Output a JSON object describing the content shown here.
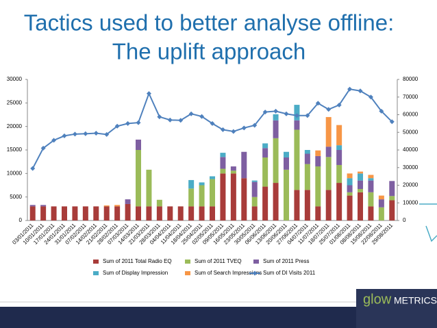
{
  "chart_data": {
    "type": "bar",
    "stacked": true,
    "title": "Tactics used to better analyse offline:",
    "subtitle": "The uplift approach",
    "categories": [
      "03/01/2011",
      "10/01/2011",
      "17/01/2011",
      "24/01/2011",
      "31/01/2011",
      "07/02/2011",
      "14/02/2011",
      "21/02/2011",
      "28/02/2011",
      "07/03/2011",
      "14/03/2011",
      "21/03/2011",
      "28/03/2011",
      "04/04/2011",
      "11/04/2011",
      "18/04/2011",
      "25/04/2011",
      "02/05/2011",
      "09/05/2011",
      "16/05/2011",
      "23/05/2011",
      "30/05/2011",
      "06/06/2011",
      "13/06/2011",
      "20/06/2011",
      "27/06/2011",
      "04/07/2011",
      "11/07/2011",
      "18/07/2011",
      "25/07/2011",
      "01/08/2011",
      "08/08/2011",
      "15/08/2011",
      "22/08/2011",
      "29/08/2011"
    ],
    "series": [
      {
        "name": "Sum of 2011 Total Radio EQ",
        "color": "#a83c3a",
        "values": [
          3000,
          3000,
          3000,
          3000,
          3000,
          3000,
          3000,
          3000,
          3000,
          3500,
          3000,
          3000,
          3000,
          3000,
          3000,
          3000,
          3000,
          3000,
          10000,
          10000,
          9000,
          3000,
          7200,
          8000,
          0,
          6500,
          6500,
          3000,
          6500,
          8000,
          5300,
          6000,
          3000,
          0,
          4300
        ]
      },
      {
        "name": "Sum of 2011 TVEQ",
        "color": "#9bbb59",
        "values": [
          0,
          0,
          0,
          0,
          0,
          0,
          0,
          0,
          0,
          0,
          12000,
          7800,
          1400,
          0,
          0,
          3800,
          4500,
          5800,
          1000,
          600,
          0,
          2000,
          6200,
          9500,
          10800,
          12800,
          5500,
          8500,
          7000,
          3800,
          700,
          700,
          3000,
          2800,
          900
        ]
      },
      {
        "name": "Sum of 2011 Press",
        "color": "#7e5fa1",
        "values": [
          300,
          300,
          0,
          0,
          0,
          0,
          0,
          0,
          0,
          1000,
          2200,
          0,
          0,
          0,
          0,
          0,
          0,
          0,
          2500,
          900,
          5600,
          3200,
          2000,
          3800,
          2600,
          2000,
          2200,
          2200,
          2200,
          3200,
          1500,
          1800,
          2500,
          1700,
          3200
        ]
      },
      {
        "name": "Sum of Display Impression",
        "color": "#4bacc6",
        "values": [
          0,
          0,
          0,
          0,
          0,
          0,
          0,
          0,
          0,
          0,
          0,
          0,
          0,
          0,
          0,
          1800,
          600,
          600,
          900,
          0,
          0,
          300,
          1000,
          1300,
          1200,
          3300,
          800,
          0,
          0,
          1000,
          1500,
          1500,
          500,
          0,
          0
        ]
      },
      {
        "name": "Sum of Search Impressions",
        "color": "#f79646",
        "values": [
          0,
          0,
          0,
          0,
          0,
          0,
          0,
          200,
          300,
          0,
          0,
          0,
          0,
          0,
          0,
          0,
          0,
          0,
          0,
          0,
          0,
          0,
          0,
          0,
          0,
          0,
          0,
          1200,
          6300,
          4300,
          1000,
          400,
          700,
          800,
          0
        ]
      },
      {
        "name": "Sum of DI Visits 2011",
        "color": "#4f81bd",
        "type": "line",
        "axis": "y2",
        "values": [
          29500,
          41000,
          45500,
          48000,
          49000,
          49200,
          49500,
          48800,
          53500,
          55000,
          55500,
          72000,
          58800,
          57000,
          56800,
          60500,
          59000,
          55000,
          51500,
          50500,
          52500,
          54000,
          61500,
          62000,
          60500,
          59500,
          59500,
          66500,
          63000,
          65500,
          74500,
          73500,
          70000,
          62000,
          56000
        ]
      }
    ],
    "ylim": [
      0,
      30000
    ],
    "yticks": [
      0,
      5000,
      10000,
      15000,
      20000,
      25000,
      30000
    ],
    "y2lim": [
      0,
      80000
    ],
    "y2ticks": [
      0,
      10000,
      20000,
      30000,
      40000,
      50000,
      60000,
      70000,
      80000
    ],
    "grid": false,
    "legend": "bottom"
  },
  "branding": [
    "glow",
    "METRICS"
  ]
}
